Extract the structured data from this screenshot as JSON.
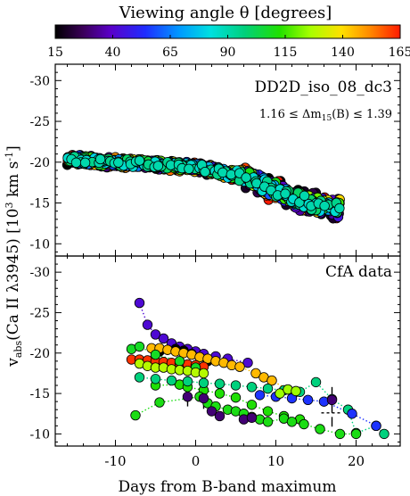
{
  "chart_data": {
    "type": "scatter",
    "colorbar": {
      "label": "Viewing angle θ   [degrees]",
      "range": [
        15,
        165
      ],
      "ticks": [
        15,
        40,
        65,
        90,
        115,
        140,
        165
      ],
      "colormap": "rainbow"
    },
    "xlabel": "Days from B-band maximum",
    "ylabel": "v_abs(Ca II λ3945)   [10³ km s⁻¹]",
    "xlim": [
      -17.5,
      25.5
    ],
    "xticks": [
      -10,
      0,
      10,
      20
    ],
    "panels": [
      {
        "name": "model",
        "ylim": [
          -8.5,
          -32
        ],
        "yticks": [
          -30,
          -25,
          -20,
          -15,
          -10
        ],
        "annotations": [
          "DD2D_iso_08_dc3",
          "1.16 ≤ Δm15(B) ≤ 1.39"
        ],
        "series": [
          {
            "x": [
              -15.5,
              -14.5,
              -13.5,
              -12.5,
              -11.5,
              -10.5,
              -9.5,
              -8.5,
              -7.5,
              -6.5,
              -5.5,
              -4.5,
              -3.5,
              -2.5,
              -1.5,
              -0.5,
              0.5,
              1.5,
              2.5,
              3.5,
              4.5,
              5.5,
              6.5,
              7.5,
              8.5,
              9.5,
              10.5,
              11.5,
              12.5,
              13.5,
              14.5,
              15.5,
              16.5,
              17.5
            ],
            "y": [
              -20.3,
              -20.3,
              -20.2,
              -20.1,
              -20.0,
              -20.0,
              -19.9,
              -19.9,
              -19.8,
              -19.8,
              -19.7,
              -19.7,
              -19.6,
              -19.6,
              -19.5,
              -19.4,
              -19.3,
              -19.1,
              -18.9,
              -18.7,
              -18.5,
              -18.3,
              -18.0,
              -17.6,
              -17.2,
              -16.8,
              -16.3,
              -15.9,
              -15.5,
              -15.2,
              -14.9,
              -14.7,
              -14.5,
              -14.3
            ]
          }
        ],
        "angle_samples": [
          15,
          20,
          25,
          30,
          35,
          40,
          45,
          50,
          55,
          60,
          65,
          70,
          75,
          80,
          85,
          90,
          95,
          100,
          105,
          110,
          115,
          120,
          125,
          130,
          135,
          140,
          145,
          150,
          155,
          160,
          165
        ],
        "spread_scale": 0.18
      },
      {
        "name": "CfA data",
        "ylim": [
          -8.5,
          -32
        ],
        "yticks": [
          -30,
          -25,
          -20,
          -15,
          -10
        ],
        "annotations": [
          "CfA data"
        ],
        "series": [
          {
            "angle": 42,
            "dotted": true,
            "x": [
              -7.0,
              -6.0,
              -5.0,
              -4.0,
              -3.0,
              -2.0,
              -1.0,
              0.0,
              1.0,
              2.5,
              4.0,
              6.5
            ],
            "y": [
              -26.2,
              -23.5,
              -22.3,
              -21.8,
              -21.2,
              -20.8,
              -20.5,
              -20.2,
              -19.9,
              -19.6,
              -19.3,
              -18.8
            ]
          },
          {
            "angle": 10,
            "dotted": false,
            "x": [
              -4.5,
              -3.5,
              -2.5,
              -1.5,
              -0.5,
              0.5,
              1.5
            ],
            "y": [
              -20.2,
              -20.4,
              -20.5,
              -20.3,
              -19.9,
              -19.5,
              -19.0
            ]
          },
          {
            "angle": 145,
            "dotted": true,
            "x": [
              -5.5,
              -4.5,
              -3.5,
              -2.5,
              -1.5,
              -0.5,
              0.5,
              1.5,
              2.5,
              3.5,
              4.5,
              5.5,
              7.5,
              8.5,
              9.5,
              11.5,
              12.5
            ],
            "y": [
              -20.6,
              -20.6,
              -20.4,
              -20.2,
              -20.0,
              -19.8,
              -19.5,
              -19.3,
              -19.0,
              -18.8,
              -18.5,
              -18.3,
              -17.5,
              -17.0,
              -16.6,
              -15.5,
              -15.2
            ]
          },
          {
            "angle": 162,
            "dotted": true,
            "x": [
              -8.0,
              -7.0,
              -6.0,
              -5.0,
              -4.0,
              -3.0,
              -2.0,
              -1.0,
              0.0,
              1.0
            ],
            "y": [
              -19.2,
              -19.2,
              -19.1,
              -19.0,
              -18.9,
              -18.8,
              -18.7,
              -18.6,
              -18.5,
              -18.3
            ]
          },
          {
            "angle": 108,
            "dotted": true,
            "x": [
              -8.0,
              -7.0,
              -5.0,
              -2.0,
              0.0
            ],
            "y": [
              -20.5,
              -20.8,
              -19.8,
              -19.0,
              -18.2
            ]
          },
          {
            "angle": 128,
            "dotted": true,
            "x": [
              -7.0,
              -6.0,
              -5.0,
              -4.0,
              -3.0,
              -2.0,
              -1.0,
              0.0,
              1.0
            ],
            "y": [
              -18.7,
              -18.4,
              -18.2,
              -18.2,
              -18.0,
              -17.9,
              -17.8,
              -17.6,
              -17.5
            ]
          },
          {
            "angle": 112,
            "dotted": true,
            "x": [
              -5.0,
              -2.0,
              -1.0,
              1.0,
              3.0,
              5.0,
              7.0,
              9.0,
              11.0,
              13.0
            ],
            "y": [
              -16.0,
              -16.1,
              -15.8,
              -15.4,
              -15.0,
              -14.5,
              -13.6,
              -12.8,
              -12.2,
              -11.8
            ]
          },
          {
            "angle": 97,
            "dotted": true,
            "x": [
              -7.0,
              -5.0,
              -3.0,
              -1.0,
              1.0,
              3.0,
              5.0,
              7.0,
              9.0,
              11.0,
              13.0,
              15.0,
              17.0,
              19.0,
              20.0,
              22.5,
              23.5
            ],
            "y": [
              -17.0,
              -16.8,
              -16.6,
              -16.5,
              -16.3,
              -16.2,
              -16.0,
              -15.8,
              -15.6,
              -15.4,
              -15.2,
              -16.4,
              -14.3,
              -13.0,
              -10.1,
              -11.0,
              -10.0
            ]
          },
          {
            "angle": 55,
            "dotted": true,
            "x": [
              8.0,
              10.0,
              12.0,
              14.0,
              16.0,
              19.5,
              22.5
            ],
            "y": [
              -14.8,
              -14.6,
              -14.4,
              -14.2,
              -14.0,
              -12.5,
              -11.0
            ]
          },
          {
            "angle": 110,
            "dotted": true,
            "x": [
              -7.5,
              -4.5,
              0.5,
              1.5,
              2.5,
              4.0,
              5.0,
              6.0,
              7.0,
              8.0,
              9.0,
              11.0,
              12.0,
              13.5,
              15.5,
              18.0,
              20.0
            ],
            "y": [
              -12.3,
              -13.9,
              -14.6,
              -13.8,
              -13.4,
              -13.0,
              -12.8,
              -12.5,
              -12.1,
              -11.8,
              -11.5,
              -11.9,
              -11.5,
              -11.2,
              -10.6,
              -10.0,
              -10.0
            ]
          },
          {
            "angle": 30,
            "dotted": false,
            "x": [
              -1.0,
              1.0,
              2.0,
              3.0,
              6.0,
              7.0,
              17.0
            ],
            "y": [
              -14.6,
              -14.4,
              -12.8,
              -12.2,
              -11.8,
              -12.0,
              -14.2
            ]
          },
          {
            "angle": 125,
            "dotted": false,
            "x": [
              10.5,
              11.5,
              12.5
            ],
            "y": [
              -15.0,
              -15.5,
              -15.3
            ]
          }
        ],
        "error_bars": [
          {
            "x": -1.0,
            "y": -14.6,
            "err": 1.2
          },
          {
            "x": 1.0,
            "y": -14.4,
            "err": 1.3
          },
          {
            "x": 17.0,
            "y": -14.2,
            "err": 1.6
          },
          {
            "x": 17.0,
            "y": -11.5,
            "err": 0.6
          }
        ],
        "black_dashes": [
          {
            "x": -3.5,
            "y": -18.1
          },
          {
            "x": 17.0,
            "y": -12.6
          }
        ]
      }
    ]
  }
}
